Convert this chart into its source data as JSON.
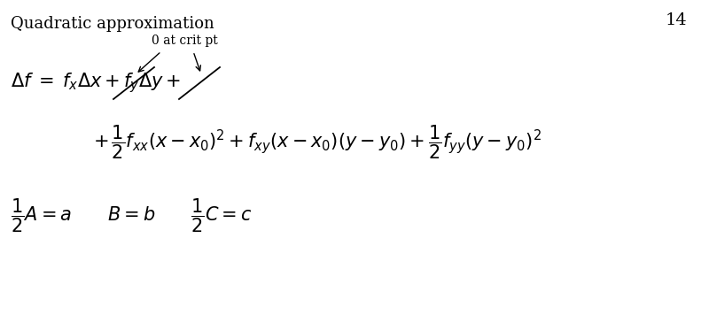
{
  "title": "Quadratic approximation",
  "page_number": "14",
  "bg_color": "#ffffff",
  "text_color": "#000000",
  "annotation_text": "0 at crit pt",
  "strikethrough_fx": true,
  "strikethrough_fy": true
}
